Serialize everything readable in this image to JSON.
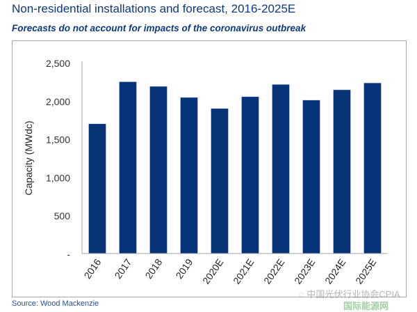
{
  "chart_data": {
    "type": "bar",
    "title": "Non-residential installations and forecast, 2016-2025E",
    "subtitle": "Forecasts do not account for impacts of the coronavirus outbreak",
    "xlabel": "",
    "ylabel": "Capacity (MWdc)",
    "categories": [
      "2016",
      "2017",
      "2018",
      "2019",
      "2020E",
      "2021E",
      "2022E",
      "2023E",
      "2024E",
      "2025E"
    ],
    "values": [
      1700,
      2250,
      2190,
      2045,
      1900,
      2055,
      2215,
      2010,
      2145,
      2235
    ],
    "ylim": [
      0,
      2500
    ],
    "yticks": [
      0,
      500,
      1000,
      1500,
      2000,
      2500
    ],
    "ytick_labels": [
      "-",
      "500",
      "1,000",
      "1,500",
      "2,000",
      "2,500"
    ],
    "grid": false,
    "bar_color": "#073479"
  },
  "source": "Source: Wood Mackenzie",
  "watermark": {
    "line1": "中国光伏行业协会CPIA",
    "line2": "国际能源网"
  }
}
